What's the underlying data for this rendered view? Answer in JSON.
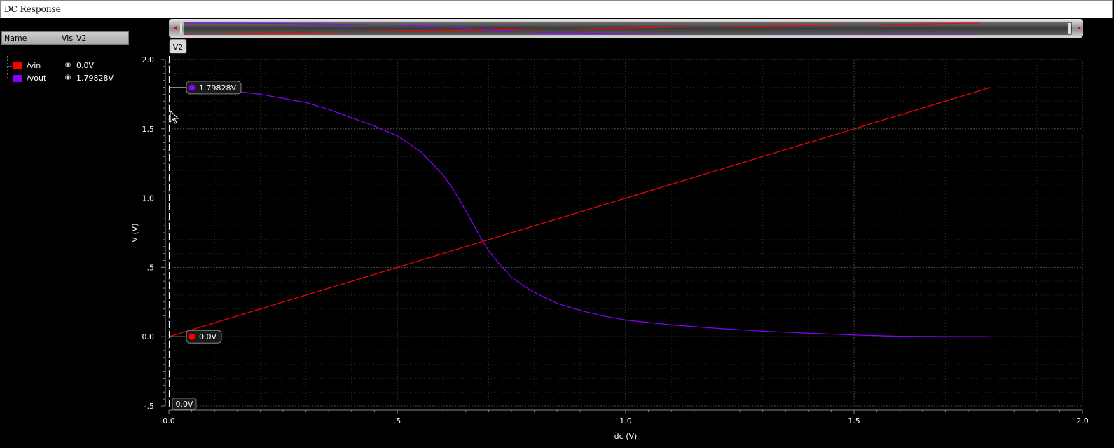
{
  "window": {
    "title": "DC Response"
  },
  "legend": {
    "columns": [
      "Name",
      "Vis",
      "V2"
    ],
    "items": [
      {
        "name": "/vin",
        "color": "#ff0000",
        "value": "0.0V",
        "visible_icon": "eye-icon"
      },
      {
        "name": "/vout",
        "color": "#8a00ff",
        "value": "1.79828V",
        "visible_icon": "eye-icon"
      }
    ]
  },
  "cursor": {
    "name": "V2",
    "x": 0.0,
    "bottom_label": "0.0V"
  },
  "markers": [
    {
      "label": "1.79828V",
      "x": 0.0,
      "y": 1.79828,
      "color": "#8a00ff"
    },
    {
      "label": "0.0V",
      "x": 0.0,
      "y": 0.0,
      "color": "#ff0000"
    }
  ],
  "chart_data": {
    "type": "line",
    "title": "DC Response",
    "xlabel": "dc (V)",
    "ylabel": "V (V)",
    "xlim": [
      0.0,
      2.0
    ],
    "ylim": [
      -0.5,
      2.0
    ],
    "x_ticks": [
      "0.0",
      ".5",
      "1.0",
      "1.5",
      "2.0"
    ],
    "y_ticks": [
      "-.5",
      "0.0",
      ".5",
      "1.0",
      "1.5",
      "2.0"
    ],
    "grid": true,
    "series": [
      {
        "name": "/vin",
        "color": "#ff0000",
        "x": [
          0.0,
          1.8
        ],
        "y": [
          0.0,
          1.8
        ]
      },
      {
        "name": "/vout",
        "color": "#8a00ff",
        "x": [
          0.0,
          0.1,
          0.2,
          0.3,
          0.35,
          0.4,
          0.45,
          0.5,
          0.55,
          0.6,
          0.625,
          0.65,
          0.675,
          0.7,
          0.725,
          0.75,
          0.775,
          0.8,
          0.85,
          0.9,
          0.95,
          1.0,
          1.1,
          1.2,
          1.3,
          1.4,
          1.5,
          1.6,
          1.7,
          1.8
        ],
        "y": [
          1.79828,
          1.79,
          1.75,
          1.69,
          1.64,
          1.58,
          1.52,
          1.45,
          1.34,
          1.17,
          1.05,
          0.91,
          0.76,
          0.62,
          0.52,
          0.43,
          0.37,
          0.32,
          0.24,
          0.19,
          0.15,
          0.12,
          0.085,
          0.06,
          0.04,
          0.025,
          0.012,
          0.003,
          0.001,
          0.0
        ]
      }
    ]
  }
}
